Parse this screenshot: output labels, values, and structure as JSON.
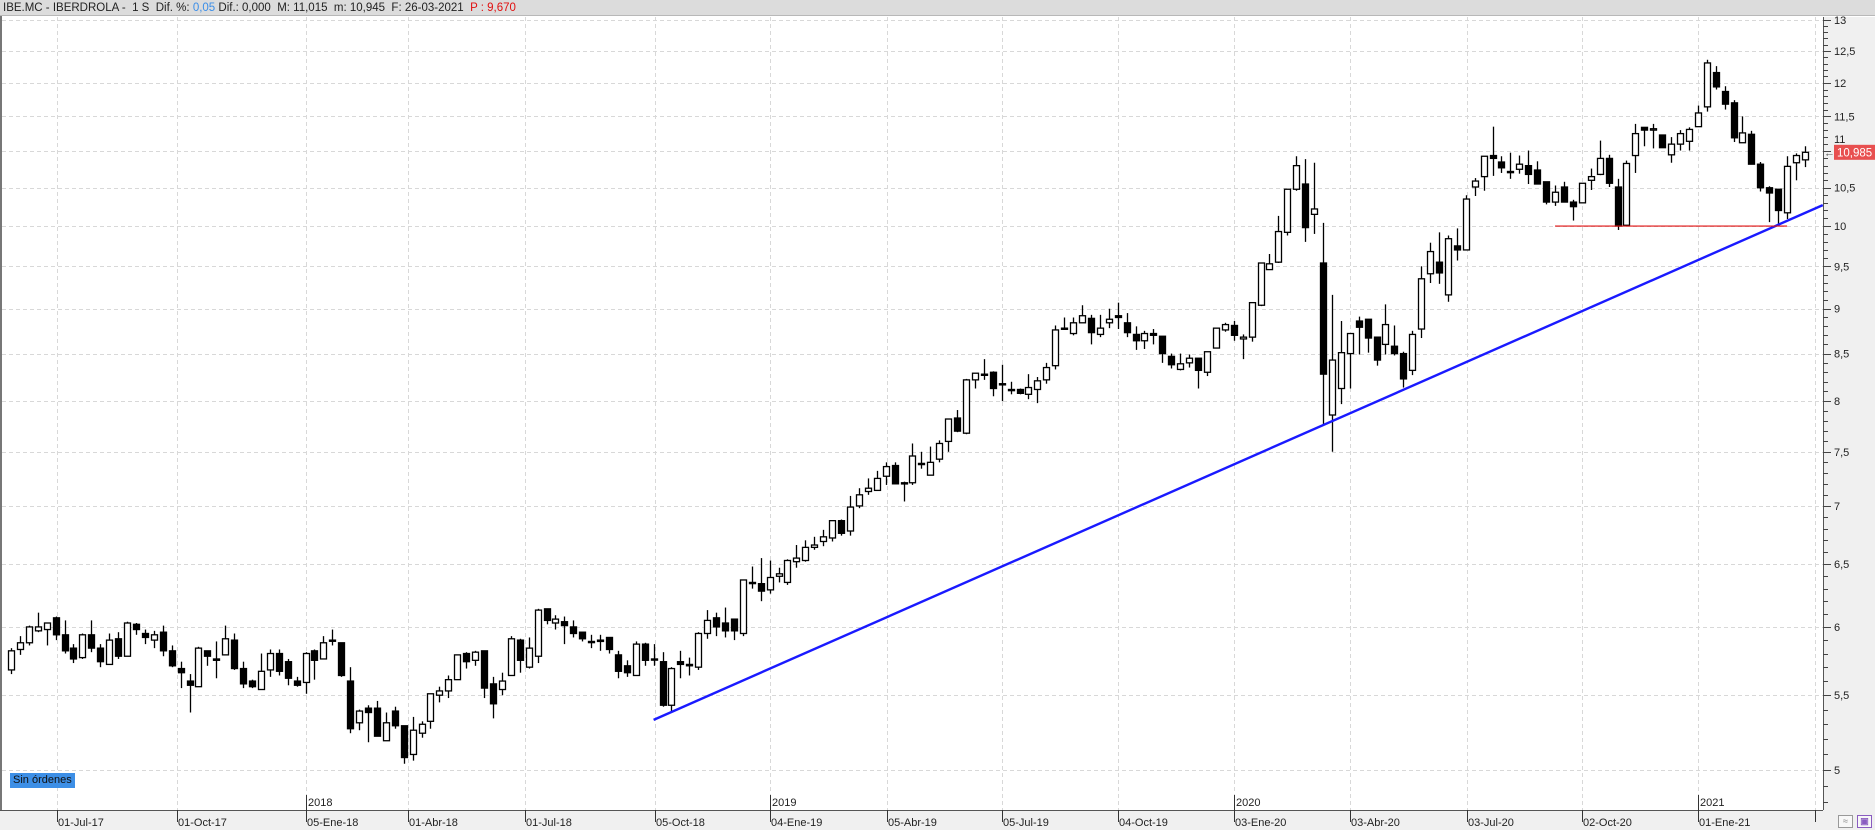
{
  "header": {
    "symbol": "IBE.MC - IBERDROLA - ",
    "period": " 1 S ",
    "dif_pct_label": " Dif. %: ",
    "dif_pct_value": "0,05",
    "rest": " Dif.: 0,000  M: 11,015  m: 10,945  F: 26-03-2021  ",
    "p_value": "P : 9,670"
  },
  "orders_badge": "Sin órdenes",
  "colors": {
    "up_body": "#ffffff",
    "down_body": "#000000",
    "trendline": "#1a1aff",
    "support_line": "#e01010",
    "price_tag": "#e85050",
    "badge": "#3d8fe6"
  },
  "icons": {
    "axis_button_1": "wave-icon",
    "axis_button_2": "save-icon"
  },
  "chart_data": {
    "type": "candlestick",
    "interval": "1 S",
    "y_scale": "log",
    "ylim": [
      4.75,
      13.04
    ],
    "grid": true,
    "y_ticks": [
      5,
      5.5,
      6,
      6.5,
      7,
      7.5,
      8,
      8.5,
      9,
      9.5,
      10,
      10.5,
      11,
      11.5,
      12,
      12.5,
      13
    ],
    "y_tick_labels": [
      "5",
      "5,5",
      "6",
      "6,5",
      "7",
      "7,5",
      "8",
      "8,5",
      "9",
      "9,5",
      "10",
      "10,5",
      "11",
      "11,5",
      "12",
      "12,5",
      "13"
    ],
    "x_tick_labels": [
      "01-Jul-17",
      "01-Oct-17",
      "05-Ene-18",
      "01-Abr-18",
      "01-Jul-18",
      "05-Oct-18",
      "04-Ene-19",
      "05-Abr-19",
      "05-Jul-19",
      "04-Oct-19",
      "03-Ene-20",
      "03-Abr-20",
      "03-Jul-20",
      "02-Oct-20",
      "01-Ene-21"
    ],
    "year_labels": [
      "2018",
      "2019",
      "2020",
      "2021"
    ],
    "last_price": 10.985,
    "last_price_label": "10,985",
    "ohlc_columns": [
      "open",
      "high",
      "low",
      "close"
    ],
    "ohlc": [
      [
        5.68,
        5.84,
        5.65,
        5.82
      ],
      [
        5.83,
        5.93,
        5.79,
        5.88
      ],
      [
        5.88,
        6.01,
        5.86,
        6.0
      ],
      [
        5.97,
        6.11,
        5.96,
        6.0
      ],
      [
        5.98,
        6.03,
        5.86,
        6.03
      ],
      [
        6.07,
        6.08,
        5.9,
        5.94
      ],
      [
        5.94,
        6.05,
        5.8,
        5.82
      ],
      [
        5.84,
        5.87,
        5.73,
        5.76
      ],
      [
        5.77,
        5.95,
        5.76,
        5.94
      ],
      [
        5.94,
        6.05,
        5.81,
        5.84
      ],
      [
        5.84,
        5.87,
        5.7,
        5.74
      ],
      [
        5.72,
        5.95,
        5.72,
        5.9
      ],
      [
        5.91,
        5.96,
        5.76,
        5.78
      ],
      [
        5.78,
        6.04,
        5.78,
        6.03
      ],
      [
        6.02,
        6.03,
        5.94,
        5.98
      ],
      [
        5.95,
        5.98,
        5.87,
        5.92
      ],
      [
        5.9,
        5.97,
        5.84,
        5.94
      ],
      [
        5.96,
        6.01,
        5.78,
        5.82
      ],
      [
        5.82,
        5.86,
        5.7,
        5.71
      ],
      [
        5.69,
        5.74,
        5.55,
        5.66
      ],
      [
        5.6,
        5.65,
        5.38,
        5.57
      ],
      [
        5.56,
        5.85,
        5.56,
        5.84
      ],
      [
        5.82,
        5.82,
        5.71,
        5.78
      ],
      [
        5.76,
        5.89,
        5.62,
        5.75
      ],
      [
        5.79,
        6.01,
        5.79,
        5.91
      ],
      [
        5.9,
        5.95,
        5.68,
        5.69
      ],
      [
        5.69,
        5.74,
        5.55,
        5.58
      ],
      [
        5.6,
        5.61,
        5.55,
        5.56
      ],
      [
        5.54,
        5.8,
        5.54,
        5.67
      ],
      [
        5.68,
        5.83,
        5.63,
        5.8
      ],
      [
        5.8,
        5.83,
        5.64,
        5.67
      ],
      [
        5.74,
        5.76,
        5.57,
        5.62
      ],
      [
        5.6,
        5.63,
        5.56,
        5.57
      ],
      [
        5.59,
        5.81,
        5.51,
        5.8
      ],
      [
        5.82,
        5.83,
        5.61,
        5.75
      ],
      [
        5.76,
        5.93,
        5.76,
        5.88
      ],
      [
        5.9,
        5.98,
        5.86,
        5.9
      ],
      [
        5.88,
        5.88,
        5.63,
        5.64
      ],
      [
        5.6,
        5.7,
        5.24,
        5.27
      ],
      [
        5.31,
        5.4,
        5.26,
        5.39
      ],
      [
        5.41,
        5.43,
        5.18,
        5.38
      ],
      [
        5.41,
        5.46,
        5.22,
        5.22
      ],
      [
        5.19,
        5.38,
        5.19,
        5.31
      ],
      [
        5.39,
        5.42,
        5.27,
        5.29
      ],
      [
        5.29,
        5.29,
        5.04,
        5.08
      ],
      [
        5.1,
        5.35,
        5.06,
        5.26
      ],
      [
        5.24,
        5.32,
        5.21,
        5.3
      ],
      [
        5.32,
        5.51,
        5.27,
        5.51
      ],
      [
        5.5,
        5.56,
        5.45,
        5.53
      ],
      [
        5.53,
        5.64,
        5.48,
        5.61
      ],
      [
        5.61,
        5.79,
        5.61,
        5.79
      ],
      [
        5.8,
        5.81,
        5.69,
        5.74
      ],
      [
        5.75,
        5.82,
        5.71,
        5.81
      ],
      [
        5.82,
        5.82,
        5.48,
        5.55
      ],
      [
        5.58,
        5.63,
        5.34,
        5.44
      ],
      [
        5.54,
        5.66,
        5.5,
        5.6
      ],
      [
        5.64,
        5.93,
        5.64,
        5.91
      ],
      [
        5.9,
        5.91,
        5.66,
        5.75
      ],
      [
        5.7,
        5.92,
        5.69,
        5.84
      ],
      [
        5.78,
        6.14,
        5.73,
        6.13
      ],
      [
        6.14,
        6.14,
        6.02,
        6.05
      ],
      [
        6.03,
        6.09,
        5.98,
        6.06
      ],
      [
        6.04,
        6.08,
        5.87,
        6.01
      ],
      [
        6.0,
        6.05,
        5.92,
        5.95
      ],
      [
        5.96,
        5.96,
        5.89,
        5.91
      ],
      [
        5.89,
        5.94,
        5.84,
        5.89
      ],
      [
        5.9,
        5.94,
        5.82,
        5.89
      ],
      [
        5.92,
        5.92,
        5.8,
        5.83
      ],
      [
        5.79,
        5.82,
        5.62,
        5.67
      ],
      [
        5.71,
        5.75,
        5.63,
        5.66
      ],
      [
        5.64,
        5.89,
        5.64,
        5.87
      ],
      [
        5.87,
        5.88,
        5.71,
        5.75
      ],
      [
        5.76,
        5.87,
        5.71,
        5.76
      ],
      [
        5.74,
        5.81,
        5.42,
        5.43
      ],
      [
        5.43,
        5.7,
        5.38,
        5.69
      ],
      [
        5.74,
        5.82,
        5.62,
        5.72
      ],
      [
        5.72,
        5.77,
        5.64,
        5.71
      ],
      [
        5.7,
        5.96,
        5.68,
        5.95
      ],
      [
        5.95,
        6.13,
        5.91,
        6.05
      ],
      [
        6.07,
        6.11,
        5.93,
        6.0
      ],
      [
        6.03,
        6.15,
        5.92,
        5.97
      ],
      [
        6.06,
        6.06,
        5.9,
        5.97
      ],
      [
        5.95,
        6.37,
        5.93,
        6.37
      ],
      [
        6.35,
        6.48,
        6.3,
        6.35
      ],
      [
        6.34,
        6.55,
        6.2,
        6.28
      ],
      [
        6.29,
        6.53,
        6.26,
        6.39
      ],
      [
        6.4,
        6.47,
        6.35,
        6.42
      ],
      [
        6.35,
        6.54,
        6.33,
        6.53
      ],
      [
        6.52,
        6.66,
        6.47,
        6.55
      ],
      [
        6.53,
        6.7,
        6.52,
        6.64
      ],
      [
        6.64,
        6.73,
        6.62,
        6.66
      ],
      [
        6.69,
        6.79,
        6.65,
        6.73
      ],
      [
        6.72,
        6.87,
        6.69,
        6.87
      ],
      [
        6.87,
        6.88,
        6.74,
        6.76
      ],
      [
        6.78,
        7.09,
        6.74,
        6.99
      ],
      [
        7.0,
        7.16,
        6.98,
        7.1
      ],
      [
        7.13,
        7.25,
        7.1,
        7.16
      ],
      [
        7.14,
        7.32,
        7.14,
        7.25
      ],
      [
        7.27,
        7.4,
        7.19,
        7.36
      ],
      [
        7.37,
        7.4,
        7.2,
        7.2
      ],
      [
        7.21,
        7.22,
        7.04,
        7.21
      ],
      [
        7.21,
        7.58,
        7.19,
        7.46
      ],
      [
        7.39,
        7.5,
        7.34,
        7.39
      ],
      [
        7.28,
        7.55,
        7.28,
        7.4
      ],
      [
        7.43,
        7.61,
        7.4,
        7.58
      ],
      [
        7.6,
        7.82,
        7.5,
        7.82
      ],
      [
        7.83,
        7.91,
        7.69,
        7.7
      ],
      [
        7.68,
        8.23,
        7.67,
        8.22
      ],
      [
        8.22,
        8.29,
        8.13,
        8.29
      ],
      [
        8.28,
        8.44,
        8.22,
        8.27
      ],
      [
        8.3,
        8.31,
        8.05,
        8.13
      ],
      [
        8.18,
        8.38,
        8.0,
        8.18
      ],
      [
        8.12,
        8.2,
        8.07,
        8.11
      ],
      [
        8.12,
        8.13,
        8.07,
        8.08
      ],
      [
        8.07,
        8.28,
        8.02,
        8.14
      ],
      [
        8.12,
        8.25,
        7.98,
        8.21
      ],
      [
        8.22,
        8.4,
        8.18,
        8.35
      ],
      [
        8.37,
        8.81,
        8.33,
        8.76
      ],
      [
        8.78,
        8.9,
        8.76,
        8.77
      ],
      [
        8.72,
        8.9,
        8.7,
        8.84
      ],
      [
        8.84,
        9.04,
        8.84,
        8.92
      ],
      [
        8.89,
        8.93,
        8.6,
        8.73
      ],
      [
        8.71,
        8.93,
        8.68,
        8.78
      ],
      [
        8.84,
        9.0,
        8.78,
        8.88
      ],
      [
        8.92,
        9.07,
        8.77,
        8.9
      ],
      [
        8.84,
        8.95,
        8.68,
        8.73
      ],
      [
        8.71,
        8.8,
        8.54,
        8.64
      ],
      [
        8.64,
        8.75,
        8.55,
        8.72
      ],
      [
        8.72,
        8.77,
        8.6,
        8.7
      ],
      [
        8.69,
        8.69,
        8.4,
        8.5
      ],
      [
        8.47,
        8.5,
        8.34,
        8.38
      ],
      [
        8.33,
        8.5,
        8.32,
        8.39
      ],
      [
        8.4,
        8.49,
        8.35,
        8.45
      ],
      [
        8.45,
        8.45,
        8.13,
        8.32
      ],
      [
        8.3,
        8.52,
        8.26,
        8.52
      ],
      [
        8.56,
        8.78,
        8.56,
        8.78
      ],
      [
        8.76,
        8.84,
        8.74,
        8.82
      ],
      [
        8.81,
        8.86,
        8.64,
        8.7
      ],
      [
        8.66,
        8.71,
        8.44,
        8.68
      ],
      [
        8.68,
        9.07,
        8.63,
        9.07
      ],
      [
        9.04,
        9.54,
        9.03,
        9.54
      ],
      [
        9.46,
        9.65,
        9.46,
        9.53
      ],
      [
        9.55,
        10.13,
        9.54,
        9.93
      ],
      [
        9.92,
        10.48,
        9.88,
        10.48
      ],
      [
        10.48,
        10.93,
        10.46,
        10.8
      ],
      [
        10.55,
        10.89,
        9.8,
        9.98
      ],
      [
        10.15,
        10.84,
        9.9,
        10.22
      ],
      [
        9.54,
        10.04,
        7.76,
        8.28
      ],
      [
        7.86,
        9.16,
        7.5,
        8.43
      ],
      [
        8.13,
        8.86,
        7.97,
        8.51
      ],
      [
        8.5,
        8.72,
        8.13,
        8.72
      ],
      [
        8.86,
        8.91,
        8.49,
        8.79
      ],
      [
        8.88,
        8.88,
        8.51,
        8.67
      ],
      [
        8.68,
        8.68,
        8.37,
        8.43
      ],
      [
        8.6,
        9.05,
        8.49,
        8.82
      ],
      [
        8.58,
        8.81,
        8.48,
        8.5
      ],
      [
        8.5,
        8.52,
        8.14,
        8.23
      ],
      [
        8.32,
        8.75,
        8.27,
        8.71
      ],
      [
        8.77,
        9.5,
        8.67,
        9.35
      ],
      [
        9.41,
        9.79,
        9.3,
        9.68
      ],
      [
        9.55,
        9.92,
        9.29,
        9.42
      ],
      [
        9.16,
        9.88,
        9.08,
        9.84
      ],
      [
        9.75,
        9.97,
        9.57,
        9.7
      ],
      [
        9.7,
        10.4,
        9.7,
        10.35
      ],
      [
        10.51,
        10.63,
        10.39,
        10.59
      ],
      [
        10.65,
        10.93,
        10.46,
        10.93
      ],
      [
        10.94,
        11.35,
        10.66,
        10.9
      ],
      [
        10.85,
        10.93,
        10.7,
        10.77
      ],
      [
        10.72,
        10.98,
        10.62,
        10.72
      ],
      [
        10.75,
        10.94,
        10.69,
        10.82
      ],
      [
        10.8,
        11.01,
        10.55,
        10.68
      ],
      [
        10.74,
        10.86,
        10.55,
        10.55
      ],
      [
        10.58,
        10.58,
        10.28,
        10.31
      ],
      [
        10.31,
        10.53,
        10.26,
        10.44
      ],
      [
        10.51,
        10.58,
        10.31,
        10.31
      ],
      [
        10.31,
        10.34,
        10.07,
        10.25
      ],
      [
        10.3,
        10.56,
        10.3,
        10.56
      ],
      [
        10.6,
        10.76,
        10.47,
        10.65
      ],
      [
        10.68,
        11.15,
        10.67,
        10.9
      ],
      [
        10.9,
        10.95,
        10.51,
        10.56
      ],
      [
        10.51,
        10.62,
        9.95,
        10.0
      ],
      [
        10.01,
        10.87,
        10.01,
        10.83
      ],
      [
        10.94,
        11.39,
        10.7,
        11.25
      ],
      [
        11.34,
        11.34,
        11.07,
        11.3
      ],
      [
        11.3,
        11.39,
        11.04,
        11.32
      ],
      [
        11.23,
        11.23,
        11.05,
        11.05
      ],
      [
        10.95,
        11.2,
        10.84,
        11.1
      ],
      [
        11.1,
        11.3,
        11.01,
        11.25
      ],
      [
        11.14,
        11.34,
        11.01,
        11.31
      ],
      [
        11.35,
        11.66,
        11.35,
        11.55
      ],
      [
        11.64,
        12.36,
        11.57,
        12.31
      ],
      [
        12.16,
        12.26,
        11.9,
        11.94
      ],
      [
        11.87,
        11.95,
        11.6,
        11.68
      ],
      [
        11.7,
        11.74,
        11.13,
        11.19
      ],
      [
        11.12,
        11.5,
        11.12,
        11.26
      ],
      [
        11.24,
        11.29,
        10.82,
        10.82
      ],
      [
        10.82,
        10.85,
        10.45,
        10.5
      ],
      [
        10.5,
        10.52,
        10.05,
        10.43
      ],
      [
        10.48,
        10.48,
        10.02,
        10.2
      ],
      [
        10.17,
        10.93,
        10.09,
        10.79
      ],
      [
        10.84,
        10.97,
        10.6,
        10.94
      ],
      [
        10.88,
        11.07,
        10.78,
        10.985
      ]
    ],
    "annotations": [
      {
        "type": "trendline",
        "from_bar": 72,
        "from_price": 5.33,
        "to_bar": 203,
        "to_price": 10.27
      },
      {
        "type": "horizontal",
        "price": 10.0,
        "from_bar": 173,
        "to_bar": 199
      }
    ]
  }
}
